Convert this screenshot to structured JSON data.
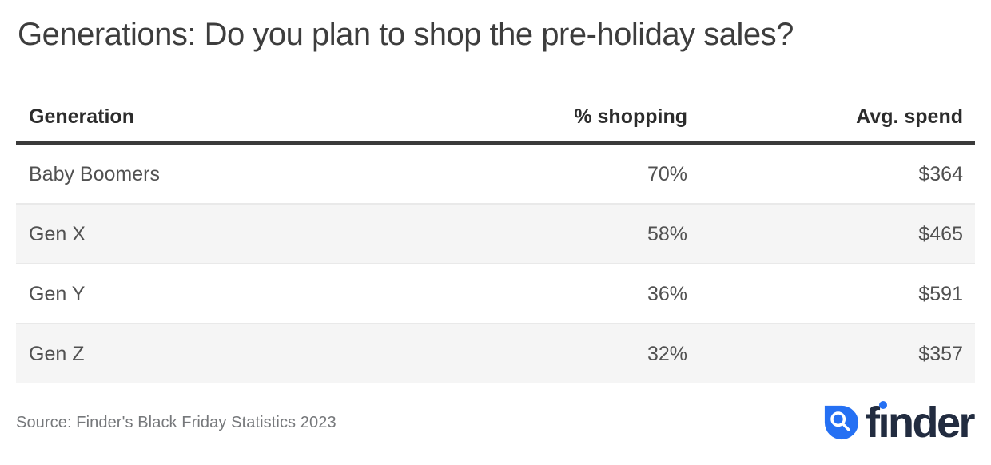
{
  "title": "Generations: Do you plan to shop the pre-holiday sales?",
  "table": {
    "columns": [
      "Generation",
      "% shopping",
      "Avg. spend"
    ],
    "rows": [
      {
        "generation": "Baby Boomers",
        "shopping": "70%",
        "spend": "$364"
      },
      {
        "generation": "Gen X",
        "shopping": "58%",
        "spend": "$465"
      },
      {
        "generation": "Gen Y",
        "shopping": "36%",
        "spend": "$591"
      },
      {
        "generation": "Gen Z",
        "shopping": "32%",
        "spend": "$357"
      }
    ]
  },
  "footer": {
    "source": "Source: Finder's Black Friday Statistics 2023",
    "logo_text": "finder"
  },
  "colors": {
    "brand_blue": "#2570f3",
    "wordmark_navy": "#222c40",
    "title_text": "#3d3d3d",
    "header_text": "#2c2c2c",
    "cell_text": "#515151",
    "alt_row_background": "#f5f5f5",
    "row_divider": "#e9e9e9",
    "header_rule": "#3a3a3a",
    "source_text": "#76787b"
  },
  "chart_data": {
    "type": "table",
    "title": "Generations: Do you plan to shop the pre-holiday sales?",
    "columns": [
      "Generation",
      "% shopping",
      "Avg. spend"
    ],
    "categories": [
      "Baby Boomers",
      "Gen X",
      "Gen Y",
      "Gen Z"
    ],
    "series": [
      {
        "name": "% shopping",
        "unit": "%",
        "values": [
          70,
          58,
          36,
          32
        ]
      },
      {
        "name": "Avg. spend",
        "unit": "$",
        "values": [
          364,
          465,
          591,
          357
        ]
      }
    ],
    "source": "Source: Finder's Black Friday Statistics 2023",
    "layout": {
      "alt_row_shading": true,
      "value_alignment": "right",
      "grid": false
    }
  }
}
